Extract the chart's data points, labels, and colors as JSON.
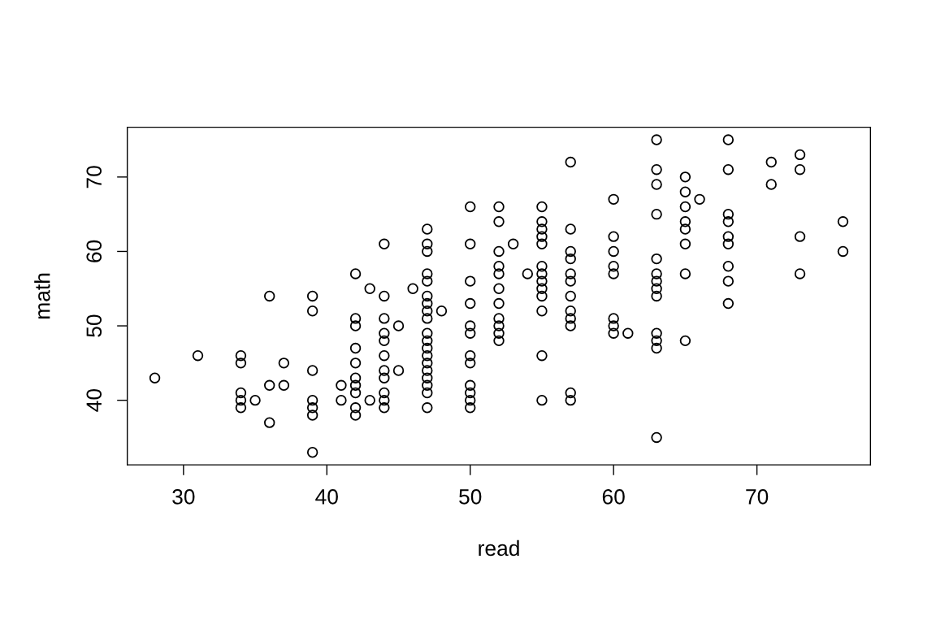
{
  "chart_data": {
    "type": "scatter",
    "xlabel": "read",
    "ylabel": "math",
    "xlim": [
      26.08,
      77.92
    ],
    "ylim": [
      31.32,
      76.68
    ],
    "xticks": [
      30,
      40,
      50,
      60,
      70
    ],
    "yticks": [
      40,
      50,
      60,
      70
    ],
    "marker": "circle",
    "grid": false,
    "series": [
      {
        "color": "#000000",
        "x": [
          28,
          31,
          34,
          34,
          34,
          34,
          34,
          35,
          36,
          36,
          36,
          37,
          37,
          39,
          39,
          39,
          39,
          39,
          39,
          39,
          41,
          41,
          42,
          42,
          42,
          42,
          42,
          42,
          42,
          42,
          42,
          42,
          43,
          43,
          44,
          44,
          44,
          44,
          44,
          44,
          44,
          44,
          44,
          44,
          44,
          45,
          45,
          46,
          47,
          47,
          47,
          47,
          47,
          47,
          47,
          47,
          47,
          47,
          47,
          47,
          47,
          47,
          47,
          47,
          47,
          47,
          47,
          48,
          50,
          50,
          50,
          50,
          50,
          50,
          50,
          50,
          50,
          50,
          50,
          50,
          52,
          52,
          52,
          52,
          52,
          52,
          52,
          52,
          52,
          52,
          52,
          53,
          54,
          55,
          55,
          55,
          55,
          55,
          55,
          55,
          55,
          55,
          55,
          55,
          55,
          55,
          57,
          57,
          57,
          57,
          57,
          57,
          57,
          57,
          57,
          57,
          57,
          57,
          60,
          60,
          60,
          60,
          60,
          60,
          60,
          60,
          61,
          63,
          63,
          63,
          63,
          63,
          63,
          63,
          63,
          63,
          63,
          63,
          63,
          63,
          65,
          65,
          65,
          65,
          65,
          65,
          65,
          65,
          66,
          68,
          68,
          68,
          68,
          68,
          68,
          68,
          68,
          68,
          71,
          71,
          73,
          73,
          73,
          73,
          76,
          76
        ],
        "values": [
          43,
          46,
          46,
          45,
          41,
          40,
          39,
          40,
          54,
          42,
          37,
          45,
          42,
          54,
          52,
          44,
          40,
          39,
          38,
          33,
          42,
          40,
          57,
          51,
          50,
          47,
          45,
          43,
          42,
          41,
          39,
          38,
          55,
          40,
          61,
          54,
          51,
          49,
          48,
          46,
          44,
          43,
          41,
          40,
          39,
          50,
          44,
          55,
          63,
          61,
          60,
          57,
          56,
          54,
          53,
          52,
          51,
          49,
          48,
          47,
          46,
          45,
          44,
          43,
          42,
          41,
          39,
          52,
          66,
          61,
          56,
          53,
          50,
          49,
          46,
          45,
          42,
          41,
          40,
          39,
          66,
          64,
          60,
          58,
          57,
          55,
          53,
          51,
          50,
          49,
          48,
          61,
          57,
          66,
          64,
          63,
          62,
          61,
          58,
          57,
          56,
          55,
          54,
          52,
          46,
          40,
          72,
          63,
          60,
          59,
          57,
          56,
          54,
          52,
          51,
          50,
          41,
          40,
          67,
          62,
          60,
          58,
          57,
          51,
          50,
          49,
          49,
          75,
          71,
          69,
          65,
          59,
          57,
          56,
          55,
          54,
          49,
          48,
          47,
          35,
          70,
          68,
          66,
          64,
          63,
          61,
          57,
          48,
          67,
          75,
          71,
          65,
          64,
          62,
          61,
          58,
          56,
          53,
          72,
          69,
          73,
          71,
          62,
          57,
          64,
          60
        ]
      }
    ]
  }
}
